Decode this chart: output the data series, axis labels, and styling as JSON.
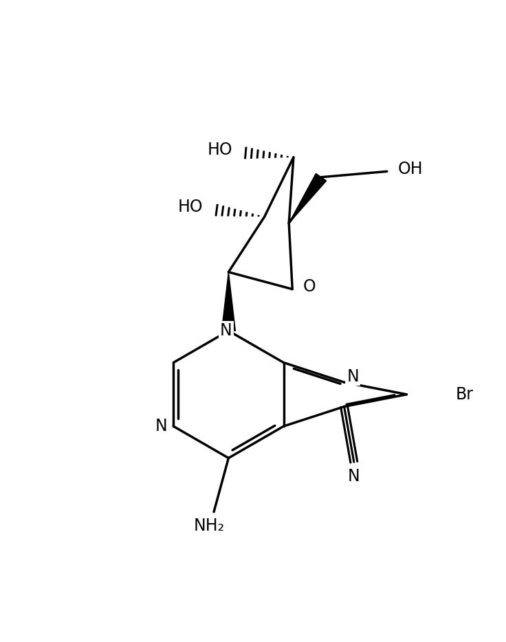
{
  "bg_color": "#ffffff",
  "line_color": "#000000",
  "lw": 2.5,
  "fs": 17,
  "figsize": [
    7.36,
    9.34
  ],
  "dpi": 100,
  "xlim": [
    0,
    10
  ],
  "ylim": [
    0,
    13
  ]
}
